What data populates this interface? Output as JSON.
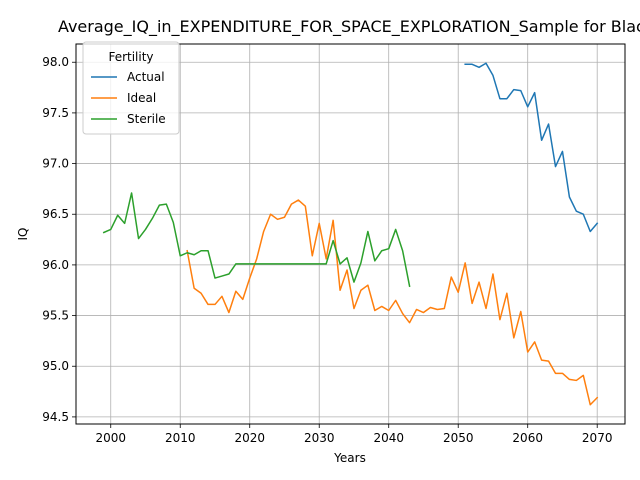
{
  "chart_data": {
    "type": "line",
    "title": "Average_IQ_in_EXPENDITURE_FOR_SPACE_EXPLORATION_Sample for Black_",
    "xlabel": "Years",
    "ylabel": "IQ",
    "xlim": [
      1995,
      2074
    ],
    "ylim": [
      94.43,
      98.18
    ],
    "xticks": [
      2000,
      2010,
      2020,
      2030,
      2040,
      2050,
      2060,
      2070
    ],
    "yticks": [
      94.5,
      95.0,
      95.5,
      96.0,
      96.5,
      97.0,
      97.5,
      98.0
    ],
    "ytick_labels": [
      "94.5",
      "95.0",
      "95.5",
      "96.0",
      "96.5",
      "97.0",
      "97.5",
      "98.0"
    ],
    "grid": true,
    "legend": {
      "title": "Fertility",
      "placement": "top-left"
    },
    "series": [
      {
        "name": "Actual",
        "color": "#1f77b4",
        "x": [
          2051,
          2052,
          2053,
          2054,
          2055,
          2056,
          2057,
          2058,
          2059,
          2060,
          2061,
          2062,
          2063,
          2064,
          2065,
          2066,
          2067,
          2068,
          2069,
          2070
        ],
        "y": [
          97.98,
          97.98,
          97.95,
          97.99,
          97.87,
          97.64,
          97.64,
          97.73,
          97.72,
          97.56,
          97.7,
          97.23,
          97.39,
          96.97,
          97.12,
          96.67,
          96.53,
          96.5,
          96.33,
          96.41
        ]
      },
      {
        "name": "Ideal",
        "color": "#ff7f0e",
        "x": [
          2011,
          2012,
          2013,
          2014,
          2015,
          2016,
          2017,
          2018,
          2019,
          2020,
          2021,
          2022,
          2023,
          2024,
          2025,
          2026,
          2027,
          2028,
          2029,
          2030,
          2031,
          2032,
          2033,
          2034,
          2035,
          2036,
          2037,
          2038,
          2039,
          2040,
          2041,
          2042,
          2043,
          2044,
          2045,
          2046,
          2047,
          2048,
          2049,
          2050,
          2051,
          2052,
          2053,
          2054,
          2055,
          2056,
          2057,
          2058,
          2059,
          2060,
          2061,
          2062,
          2063,
          2064,
          2065,
          2066,
          2067,
          2068,
          2069,
          2070
        ],
        "y": [
          96.14,
          95.77,
          95.72,
          95.61,
          95.61,
          95.69,
          95.53,
          95.74,
          95.66,
          95.87,
          96.06,
          96.33,
          96.5,
          96.45,
          96.47,
          96.6,
          96.64,
          96.58,
          96.09,
          96.41,
          96.06,
          96.44,
          95.75,
          95.95,
          95.57,
          95.75,
          95.8,
          95.55,
          95.59,
          95.55,
          95.65,
          95.52,
          95.43,
          95.56,
          95.53,
          95.58,
          95.56,
          95.57,
          95.88,
          95.73,
          96.02,
          95.62,
          95.83,
          95.57,
          95.91,
          95.46,
          95.72,
          95.28,
          95.54,
          95.14,
          95.24,
          95.06,
          95.05,
          94.93,
          94.93,
          94.87,
          94.86,
          94.91,
          94.62,
          94.69
        ]
      },
      {
        "name": "Sterile",
        "color": "#2ca02c",
        "x": [
          1999,
          2000,
          2001,
          2002,
          2003,
          2004,
          2005,
          2006,
          2007,
          2008,
          2009,
          2010,
          2011,
          2012,
          2013,
          2014,
          2015,
          2016,
          2017,
          2018,
          2019,
          2020,
          2021,
          2022,
          2023,
          2024,
          2025,
          2026,
          2027,
          2028,
          2029,
          2030,
          2031,
          2032,
          2033,
          2034,
          2035,
          2036,
          2037,
          2038,
          2039,
          2040,
          2041,
          2042,
          2043
        ],
        "y": [
          96.32,
          96.35,
          96.49,
          96.41,
          96.71,
          96.26,
          96.35,
          96.46,
          96.59,
          96.6,
          96.42,
          96.09,
          96.12,
          96.1,
          96.14,
          96.14,
          95.87,
          95.89,
          95.91,
          96.01,
          96.01,
          96.01,
          96.01,
          96.01,
          96.01,
          96.01,
          96.01,
          96.01,
          96.01,
          96.01,
          96.01,
          96.01,
          96.01,
          96.24,
          96.01,
          96.07,
          95.83,
          96.02,
          96.33,
          96.04,
          96.14,
          96.16,
          96.35,
          96.14,
          95.79
        ]
      }
    ]
  }
}
